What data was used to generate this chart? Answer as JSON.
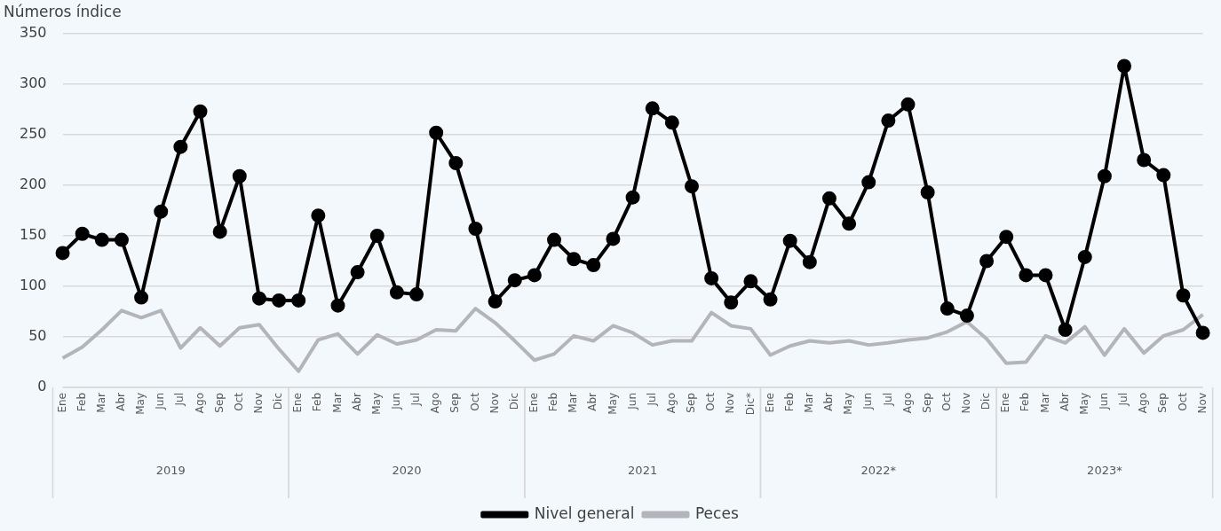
{
  "chart_data": {
    "type": "line",
    "ylabel": "Números índice",
    "categories": [
      "Ene",
      "Feb",
      "Mar",
      "Abr",
      "May",
      "Jun",
      "Jul",
      "Ago",
      "Sep",
      "Oct",
      "Nov",
      "Dic",
      "Ene",
      "Feb",
      "Mar",
      "Abr",
      "May",
      "Jun",
      "Jul",
      "Ago",
      "Sep",
      "Oct",
      "Nov",
      "Dic",
      "Ene",
      "Feb",
      "Mar",
      "Abr",
      "May",
      "Jun",
      "Jul",
      "Ago",
      "Sep",
      "Oct",
      "Nov",
      "Dic*",
      "Ene",
      "Feb",
      "Mar",
      "Abr",
      "May",
      "Jun",
      "Jul",
      "Ago",
      "Sep",
      "Oct",
      "Nov",
      "Dic",
      "Ene",
      "Feb",
      "Mar",
      "Abr",
      "May",
      "Jun",
      "Jul",
      "Ago",
      "Sep",
      "Oct",
      "Nov"
    ],
    "series": [
      {
        "name": "Nivel general",
        "color": "#000000",
        "marker": "circle",
        "values": [
          133,
          152,
          146,
          146,
          89,
          174,
          238,
          273,
          154,
          209,
          88,
          86,
          86,
          170,
          81,
          114,
          150,
          94,
          92,
          252,
          222,
          157,
          85,
          106,
          111,
          146,
          127,
          121,
          147,
          188,
          276,
          262,
          199,
          108,
          84,
          105,
          87,
          145,
          124,
          187,
          162,
          203,
          264,
          280,
          193,
          78,
          71,
          125,
          149,
          111,
          111,
          57,
          129,
          209,
          318,
          225,
          210,
          91,
          54
        ]
      },
      {
        "name": "Peces",
        "color": "#b4b4bc",
        "marker": "none",
        "values": [
          29,
          40,
          57,
          76,
          69,
          76,
          39,
          59,
          41,
          59,
          62,
          38,
          16,
          47,
          53,
          33,
          52,
          43,
          47,
          57,
          56,
          78,
          64,
          46,
          27,
          33,
          51,
          46,
          61,
          54,
          42,
          46,
          46,
          74,
          61,
          58,
          32,
          41,
          46,
          44,
          46,
          42,
          44,
          47,
          49,
          55,
          65,
          48,
          24,
          25,
          51,
          44,
          60,
          32,
          58,
          34,
          51,
          57,
          72
        ]
      }
    ],
    "annotations": [
      "2019",
      "2020",
      "2021",
      "2022*",
      "2023*"
    ],
    "ylim": [
      0,
      350
    ],
    "yticks": [
      0,
      50,
      100,
      150,
      200,
      250,
      300,
      350
    ],
    "grid": "y",
    "legend": "bottom"
  }
}
